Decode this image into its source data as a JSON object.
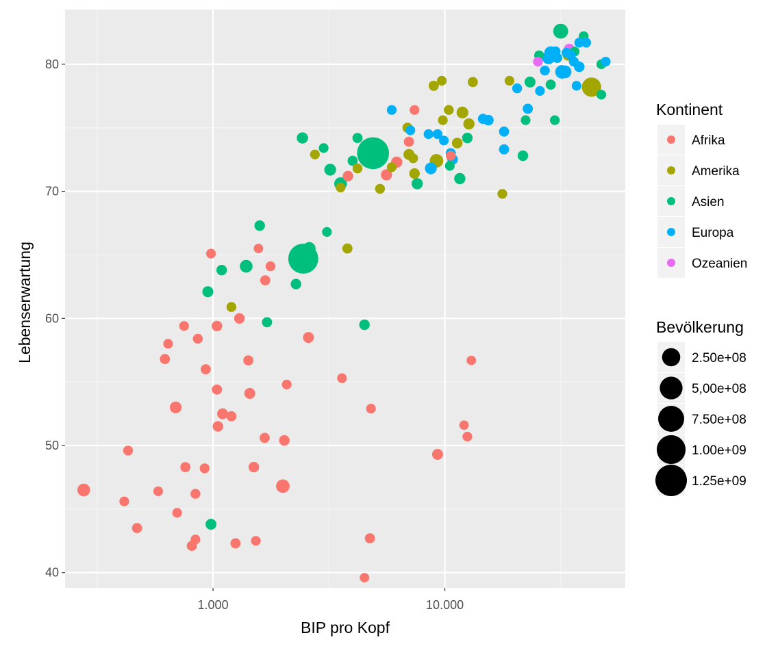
{
  "chart_data": {
    "type": "scatter",
    "title": "",
    "xlabel": "BIP pro Kopf",
    "ylabel": "Lebenserwartung",
    "x_scale": "log10",
    "xlim": [
      230,
      60000
    ],
    "ylim": [
      38.8,
      84.3
    ],
    "x_ticks": [
      {
        "value": 1000,
        "label": "1.000"
      },
      {
        "value": 10000,
        "label": "10.000"
      }
    ],
    "y_ticks": [
      {
        "value": 40,
        "label": "40"
      },
      {
        "value": 50,
        "label": "50"
      },
      {
        "value": 60,
        "label": "60"
      },
      {
        "value": 70,
        "label": "70"
      },
      {
        "value": 80,
        "label": "80"
      }
    ],
    "grid": true,
    "legend_placement": "right",
    "color_legend": {
      "title": "Kontinent",
      "entries": [
        {
          "name": "Afrika",
          "color": "#F8766D"
        },
        {
          "name": "Amerika",
          "color": "#A3A500"
        },
        {
          "name": "Asien",
          "color": "#00BF7D"
        },
        {
          "name": "Europa",
          "color": "#00B0F6"
        },
        {
          "name": "Ozeanien",
          "color": "#E76BF3"
        }
      ]
    },
    "size_legend": {
      "title": "Bevölkerung",
      "entries": [
        {
          "label": "2.50e+08",
          "value": 250000000
        },
        {
          "label": "5,00e+08",
          "value": 500000000
        },
        {
          "label": "7.50e+08",
          "value": 750000000
        },
        {
          "label": "1.00e+09",
          "value": 1000000000
        },
        {
          "label": "1.25e+09",
          "value": 1250000000
        }
      ]
    },
    "series": [
      {
        "continent": "Afrika",
        "points": [
          [
            277,
            46.5,
            60000000
          ],
          [
            414,
            45.6,
            10000000
          ],
          [
            430,
            49.6,
            12000000
          ],
          [
            470,
            43.5,
            15000000
          ],
          [
            580,
            46.4,
            10000000
          ],
          [
            620,
            56.8,
            15000000
          ],
          [
            640,
            58.0,
            10000000
          ],
          [
            690,
            53.0,
            40000000
          ],
          [
            700,
            44.7,
            10000000
          ],
          [
            750,
            59.4,
            10000000
          ],
          [
            760,
            48.3,
            15000000
          ],
          [
            810,
            42.1,
            15000000
          ],
          [
            840,
            42.6,
            10000000
          ],
          [
            840,
            46.2,
            12000000
          ],
          [
            860,
            58.4,
            12000000
          ],
          [
            920,
            48.2,
            12000000
          ],
          [
            930,
            56.0,
            15000000
          ],
          [
            980,
            65.1,
            10000000
          ],
          [
            1040,
            59.4,
            20000000
          ],
          [
            1040,
            54.4,
            15000000
          ],
          [
            1050,
            51.5,
            20000000
          ],
          [
            1100,
            52.5,
            25000000
          ],
          [
            1200,
            52.3,
            15000000
          ],
          [
            1250,
            42.3,
            15000000
          ],
          [
            1300,
            60.0,
            20000000
          ],
          [
            1420,
            56.7,
            15000000
          ],
          [
            1440,
            54.1,
            25000000
          ],
          [
            1500,
            48.3,
            20000000
          ],
          [
            1530,
            42.5,
            10000000
          ],
          [
            1570,
            65.5,
            8000000
          ],
          [
            1670,
            50.6,
            15000000
          ],
          [
            1680,
            63.0,
            15000000
          ],
          [
            1770,
            64.1,
            12000000
          ],
          [
            2000,
            46.8,
            80000000
          ],
          [
            2030,
            50.4,
            20000000
          ],
          [
            2080,
            54.8,
            10000000
          ],
          [
            2580,
            58.5,
            25000000
          ],
          [
            3600,
            55.3,
            10000000
          ],
          [
            3820,
            71.2,
            20000000
          ],
          [
            4500,
            39.6,
            8000000
          ],
          [
            4750,
            42.7,
            15000000
          ],
          [
            4800,
            52.9,
            10000000
          ],
          [
            5600,
            71.3,
            30000000
          ],
          [
            6200,
            72.3,
            30000000
          ],
          [
            7000,
            73.9,
            15000000
          ],
          [
            7400,
            76.4,
            10000000
          ],
          [
            9300,
            49.3,
            25000000
          ],
          [
            10600,
            72.8,
            10000000
          ],
          [
            12100,
            51.6,
            8000000
          ],
          [
            12500,
            50.7,
            10000000
          ],
          [
            13000,
            56.7,
            8000000
          ]
        ]
      },
      {
        "continent": "Amerika",
        "points": [
          [
            1200,
            60.9,
            12000000
          ],
          [
            2750,
            72.9,
            10000000
          ],
          [
            3550,
            70.3,
            10000000
          ],
          [
            3800,
            65.5,
            15000000
          ],
          [
            4200,
            71.8,
            12000000
          ],
          [
            5250,
            70.2,
            12000000
          ],
          [
            5900,
            71.9,
            10000000
          ],
          [
            6900,
            75.0,
            15000000
          ],
          [
            7000,
            72.9,
            25000000
          ],
          [
            7300,
            72.6,
            10000000
          ],
          [
            7400,
            71.4,
            20000000
          ],
          [
            8950,
            78.3,
            15000000
          ],
          [
            9200,
            72.4,
            80000000
          ],
          [
            9700,
            78.7,
            10000000
          ],
          [
            9800,
            75.6,
            10000000
          ],
          [
            10400,
            76.4,
            12000000
          ],
          [
            11300,
            73.8,
            20000000
          ],
          [
            11900,
            76.2,
            40000000
          ],
          [
            12700,
            75.3,
            30000000
          ],
          [
            13200,
            78.6,
            15000000
          ],
          [
            17700,
            69.8,
            10000000
          ],
          [
            19000,
            78.7,
            10000000
          ],
          [
            34000,
            80.7,
            20000000
          ],
          [
            42900,
            78.2,
            300000000
          ]
        ]
      },
      {
        "continent": "Asien",
        "points": [
          [
            950,
            62.1,
            25000000
          ],
          [
            980,
            43.8,
            25000000
          ],
          [
            1090,
            63.8,
            20000000
          ],
          [
            1390,
            64.1,
            60000000
          ],
          [
            1590,
            67.3,
            20000000
          ],
          [
            1710,
            59.7,
            15000000
          ],
          [
            2280,
            62.7,
            20000000
          ],
          [
            2430,
            74.2,
            30000000
          ],
          [
            2450,
            64.7,
            1100000000
          ],
          [
            2600,
            65.5,
            60000000
          ],
          [
            3000,
            73.4,
            10000000
          ],
          [
            3100,
            66.8,
            10000000
          ],
          [
            3200,
            71.7,
            40000000
          ],
          [
            3550,
            70.6,
            60000000
          ],
          [
            4000,
            72.4,
            15000000
          ],
          [
            4200,
            74.2,
            15000000
          ],
          [
            4500,
            59.5,
            20000000
          ],
          [
            4900,
            73.0,
            1300000000
          ],
          [
            7600,
            70.6,
            30000000
          ],
          [
            10500,
            72.0,
            10000000
          ],
          [
            11600,
            71.0,
            30000000
          ],
          [
            12500,
            74.2,
            20000000
          ],
          [
            21700,
            72.8,
            20000000
          ],
          [
            22300,
            75.6,
            10000000
          ],
          [
            23300,
            78.6,
            25000000
          ],
          [
            25500,
            80.7,
            12000000
          ],
          [
            28600,
            78.4,
            15000000
          ],
          [
            29800,
            75.6,
            10000000
          ],
          [
            31600,
            82.6,
            120000000
          ],
          [
            36300,
            81.0,
            10000000
          ],
          [
            39700,
            82.2,
            12000000
          ],
          [
            47300,
            80.0,
            10000000
          ],
          [
            47300,
            77.6,
            10000000
          ]
        ]
      },
      {
        "continent": "Europa",
        "points": [
          [
            5900,
            76.4,
            10000000
          ],
          [
            7100,
            74.8,
            10000000
          ],
          [
            8500,
            74.5,
            10000000
          ],
          [
            8700,
            71.8,
            40000000
          ],
          [
            9300,
            74.5,
            10000000
          ],
          [
            9900,
            74.0,
            10000000
          ],
          [
            10600,
            73.0,
            15000000
          ],
          [
            10800,
            72.5,
            20000000
          ],
          [
            14600,
            75.7,
            15000000
          ],
          [
            15400,
            75.6,
            20000000
          ],
          [
            18000,
            74.7,
            15000000
          ],
          [
            18000,
            73.3,
            15000000
          ],
          [
            20500,
            78.1,
            12000000
          ],
          [
            22800,
            76.5,
            15000000
          ],
          [
            25700,
            77.9,
            10000000
          ],
          [
            27000,
            79.5,
            12000000
          ],
          [
            28000,
            80.5,
            60000000
          ],
          [
            28600,
            80.9,
            60000000
          ],
          [
            30000,
            81.0,
            15000000
          ],
          [
            30500,
            80.5,
            15000000
          ],
          [
            32000,
            79.4,
            80000000
          ],
          [
            33000,
            79.4,
            60000000
          ],
          [
            33500,
            80.9,
            12000000
          ],
          [
            35000,
            80.7,
            10000000
          ],
          [
            36000,
            80.2,
            12000000
          ],
          [
            37000,
            78.3,
            10000000
          ],
          [
            38000,
            79.8,
            20000000
          ],
          [
            38000,
            81.7,
            12000000
          ],
          [
            40700,
            81.7,
            12000000
          ],
          [
            49400,
            80.2,
            10000000
          ]
        ]
      },
      {
        "continent": "Ozeanien",
        "points": [
          [
            25200,
            80.2,
            10000000
          ],
          [
            34400,
            81.2,
            20000000
          ]
        ]
      }
    ]
  }
}
